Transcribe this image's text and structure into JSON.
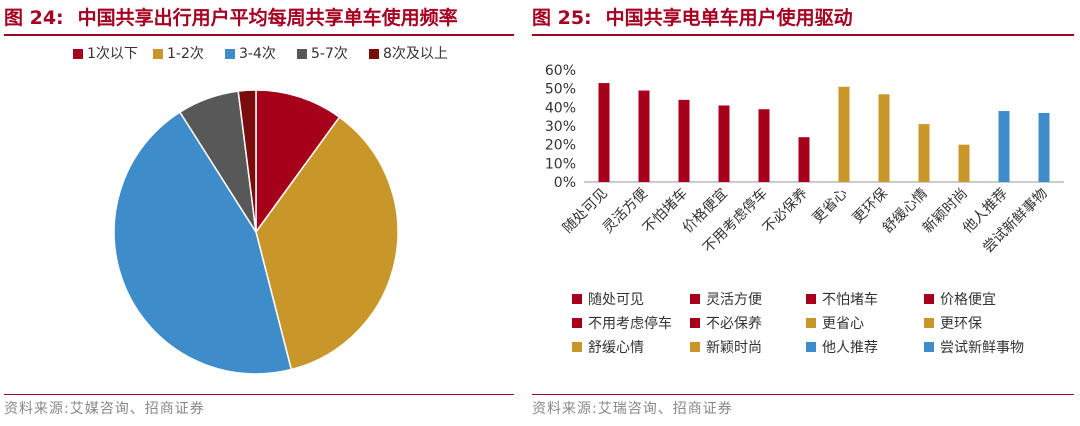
{
  "colors": {
    "red": "#a6001b",
    "gold": "#c9962a",
    "blue": "#3f8ccb",
    "gray": "#585858",
    "darkred": "#7a0c0c",
    "title": "#a50021"
  },
  "left": {
    "fig_number": "图 24:",
    "fig_title": "中国共享出行用户平均每周共享单车使用频率",
    "source": "资料来源:艾媒咨询、招商证券"
  },
  "right": {
    "fig_number": "图 25:",
    "fig_title": "中国共享电单车用户使用驱动",
    "source": "资料来源:艾瑞咨询、招商证券"
  },
  "chart_data": [
    {
      "type": "pie",
      "title": "",
      "legend_position": "top",
      "start_angle_deg": 0,
      "direction": "clockwise",
      "slices": [
        {
          "label": "1次以下",
          "value": 10,
          "color": "#a6001b"
        },
        {
          "label": "1-2次",
          "value": 36,
          "color": "#c9962a"
        },
        {
          "label": "3-4次",
          "value": 45,
          "color": "#3f8ccb"
        },
        {
          "label": "5-7次",
          "value": 7,
          "color": "#585858"
        },
        {
          "label": "8次及以上",
          "value": 2,
          "color": "#7a0c0c"
        }
      ]
    },
    {
      "type": "bar",
      "title": "",
      "xlabel": "",
      "ylabel": "",
      "ylim": [
        0,
        0.6
      ],
      "yticks": [
        "0%",
        "10%",
        "20%",
        "30%",
        "40%",
        "50%",
        "60%"
      ],
      "grid": false,
      "legend_position": "bottom",
      "categories": [
        "随处可见",
        "灵活方便",
        "不怕堵车",
        "价格便宜",
        "不用考虑停车",
        "不必保养",
        "更省心",
        "更环保",
        "舒缓心情",
        "新颖时尚",
        "他人推荐",
        "尝试新鲜事物"
      ],
      "values": [
        0.53,
        0.49,
        0.44,
        0.41,
        0.39,
        0.24,
        0.51,
        0.47,
        0.31,
        0.2,
        0.38,
        0.37
      ],
      "colors": [
        "#a6001b",
        "#a6001b",
        "#a6001b",
        "#a6001b",
        "#a6001b",
        "#a6001b",
        "#c9962a",
        "#c9962a",
        "#c9962a",
        "#c9962a",
        "#3f8ccb",
        "#3f8ccb"
      ]
    }
  ]
}
